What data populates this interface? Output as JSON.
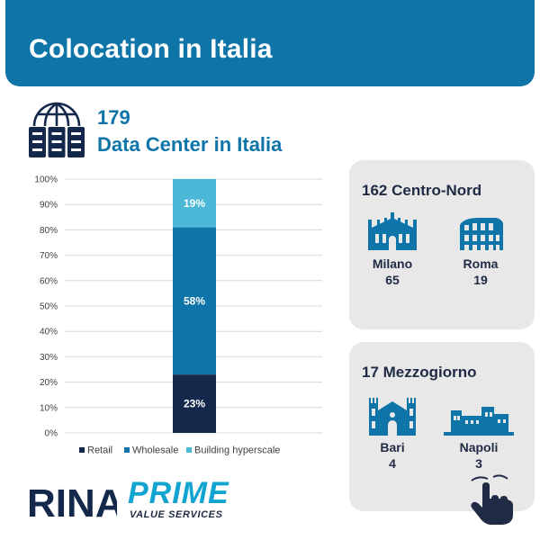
{
  "header": {
    "title": "Colocation in Italia"
  },
  "summary": {
    "count": "179",
    "label": "Data Center in Italia"
  },
  "chart_data": {
    "type": "bar",
    "stacked": true,
    "categories": [
      ""
    ],
    "series": [
      {
        "name": "Retail",
        "values": [
          23
        ],
        "color": "#14284b"
      },
      {
        "name": "Wholesale",
        "values": [
          58
        ],
        "color": "#0f75a8"
      },
      {
        "name": "Building hyperscale",
        "values": [
          19
        ],
        "color": "#4ab8d6"
      }
    ],
    "ylim": [
      0,
      100
    ],
    "yticks": [
      "0%",
      "10%",
      "20%",
      "30%",
      "40%",
      "50%",
      "60%",
      "70%",
      "80%",
      "90%",
      "100%"
    ],
    "grid": true,
    "legend": "bottom",
    "data_labels": [
      "23%",
      "58%",
      "19%"
    ]
  },
  "regions": {
    "north": {
      "title": "162 Centro-Nord",
      "cities": [
        {
          "name": "Milano",
          "value": "65",
          "icon": "cathedral-icon"
        },
        {
          "name": "Roma",
          "value": "19",
          "icon": "colosseum-icon"
        }
      ]
    },
    "south": {
      "title": "17 Mezzogiorno",
      "cities": [
        {
          "name": "Bari",
          "value": "4",
          "icon": "basilica-icon"
        },
        {
          "name": "Napoli",
          "value": "3",
          "icon": "castle-icon"
        }
      ]
    }
  },
  "logos": {
    "rina": "RINA",
    "prime": "PRIME",
    "prime_sub": "VALUE SERVICES"
  },
  "icons": {
    "datacenter": "datacenter-globe-icon",
    "hand": "pointing-hand-icon"
  },
  "colors": {
    "primary": "#0f75a8",
    "dark": "#14284b",
    "light": "#4ab8d6",
    "panel": "#e8e8e8"
  }
}
